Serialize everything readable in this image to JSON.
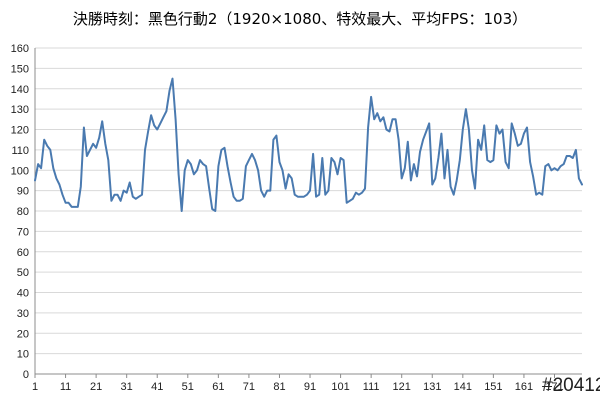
{
  "chart_data": {
    "type": "line",
    "title": "決勝時刻：黑色行動2（1920×1080、特效最大、平均FPS：103）",
    "xlabel": "",
    "ylabel": "",
    "ylim": [
      0,
      160
    ],
    "y_ticks": [
      0,
      10,
      20,
      30,
      40,
      50,
      60,
      70,
      80,
      90,
      100,
      110,
      120,
      130,
      140,
      150,
      160
    ],
    "x_range": [
      1,
      180
    ],
    "x_tick_labels": [
      1,
      11,
      21,
      31,
      41,
      51,
      61,
      71,
      81,
      91,
      101,
      111,
      121,
      131,
      141,
      151,
      161,
      171
    ],
    "grid": "horizontal",
    "legend": "none",
    "series": [
      {
        "color": "#4a7ab0",
        "values": [
          95,
          103,
          101,
          115,
          112,
          110,
          101,
          96,
          93,
          88,
          84,
          84,
          82,
          82,
          82,
          92,
          121,
          107,
          110,
          113,
          111,
          116,
          124,
          113,
          105,
          85,
          88,
          88,
          85,
          90,
          89,
          94,
          87,
          86,
          87,
          88,
          110,
          119,
          127,
          122,
          120,
          123,
          126,
          129,
          139,
          145,
          125,
          98,
          80,
          100,
          105,
          103,
          98,
          100,
          105,
          103,
          102,
          91,
          81,
          80,
          102,
          110,
          111,
          102,
          94,
          87,
          85,
          85,
          86,
          102,
          105,
          108,
          105,
          100,
          90,
          87,
          90,
          90,
          115,
          117,
          104,
          100,
          91,
          98,
          96,
          88,
          87,
          87,
          87,
          88,
          90,
          108,
          87,
          88,
          106,
          88,
          90,
          106,
          104,
          98,
          106,
          105,
          84,
          85,
          86,
          89,
          88,
          89,
          91,
          121,
          136,
          125,
          128,
          124,
          126,
          120,
          119,
          125,
          125,
          115,
          96,
          101,
          114,
          95,
          103,
          97,
          109,
          115,
          119,
          123,
          93,
          96,
          106,
          118,
          96,
          110,
          92,
          88,
          95,
          105,
          120,
          130,
          120,
          100,
          91,
          115,
          110,
          122,
          105,
          104,
          105,
          122,
          118,
          120,
          104,
          101,
          123,
          118,
          112,
          113,
          118,
          121,
          104,
          97,
          88,
          89,
          88,
          102,
          103,
          100,
          101,
          100,
          102,
          103,
          107,
          107,
          106,
          110,
          96,
          93
        ]
      }
    ]
  },
  "watermark": "#20412"
}
